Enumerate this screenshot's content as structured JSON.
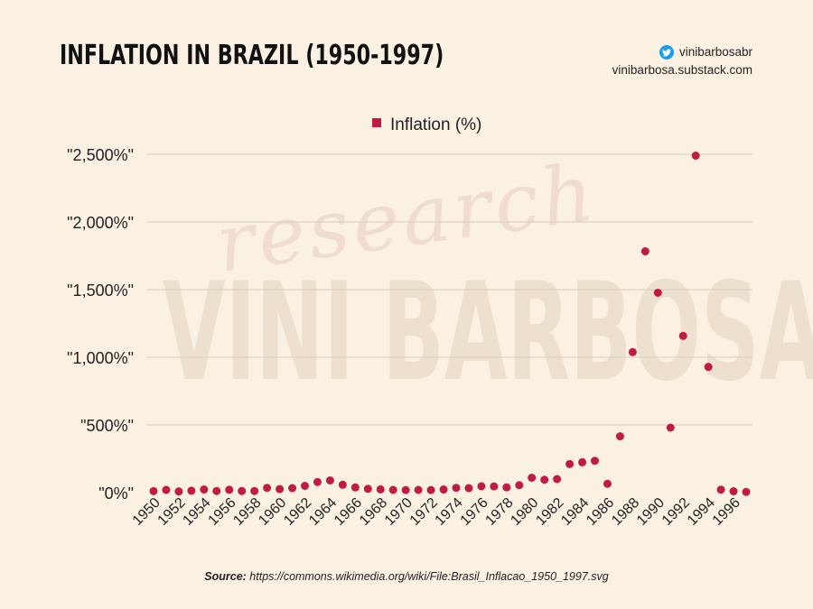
{
  "header": {
    "title": "INFLATION IN BRAZIL (1950-1997)",
    "twitter_handle": "vinibarbosabr",
    "website": "vinibarbosa.substack.com"
  },
  "watermark": {
    "script_text": "research",
    "main_text": "VINI BARBOSA"
  },
  "footer": {
    "source_label": "Source:",
    "source_url": "https://commons.wikimedia.org/wiki/File:Brasil_Inflacao_1950_1997.svg"
  },
  "colors": {
    "marker": "#c01a45",
    "grid": "#d7cdbd",
    "background": "#faf1e3"
  },
  "chart_data": {
    "type": "scatter",
    "title": "INFLATION IN BRAZIL (1950-1997)",
    "xlabel": "",
    "ylabel": "",
    "legend_position": "top-center",
    "grid": true,
    "ylim": [
      0,
      2500
    ],
    "y_ticks": [
      0,
      500,
      1000,
      1500,
      2000,
      2500
    ],
    "y_tick_labels": [
      "\"0%\"",
      "\"500%\"",
      "\"1,000%\"",
      "\"1,500%\"",
      "\"2,000%\"",
      "\"2,500%\""
    ],
    "x_tick_labels": [
      "1950",
      "1952",
      "1954",
      "1956",
      "1958",
      "1960",
      "1962",
      "1964",
      "1966",
      "1968",
      "1970",
      "1972",
      "1974",
      "1976",
      "1978",
      "1980",
      "1982",
      "1984",
      "1986",
      "1988",
      "1990",
      "1992",
      "1994",
      "1996"
    ],
    "series": [
      {
        "name": "Inflation (%)",
        "x": [
          1950,
          1951,
          1952,
          1953,
          1954,
          1955,
          1956,
          1957,
          1958,
          1959,
          1960,
          1961,
          1962,
          1963,
          1964,
          1965,
          1966,
          1967,
          1968,
          1969,
          1970,
          1971,
          1972,
          1973,
          1974,
          1975,
          1976,
          1977,
          1978,
          1979,
          1980,
          1981,
          1982,
          1983,
          1984,
          1985,
          1986,
          1987,
          1988,
          1989,
          1990,
          1991,
          1992,
          1993,
          1994,
          1995,
          1996,
          1997
        ],
        "values": [
          11,
          20,
          9,
          14,
          23,
          12,
          21,
          12,
          12,
          35,
          26,
          33,
          50,
          78,
          90,
          58,
          38,
          28,
          24,
          20,
          19,
          20,
          19,
          23,
          35,
          33,
          47,
          46,
          39,
          55,
          110,
          95,
          100,
          211,
          224,
          235,
          65,
          416,
          1038,
          1783,
          1477,
          480,
          1158,
          2490,
          929,
          22,
          10,
          5
        ]
      }
    ]
  }
}
